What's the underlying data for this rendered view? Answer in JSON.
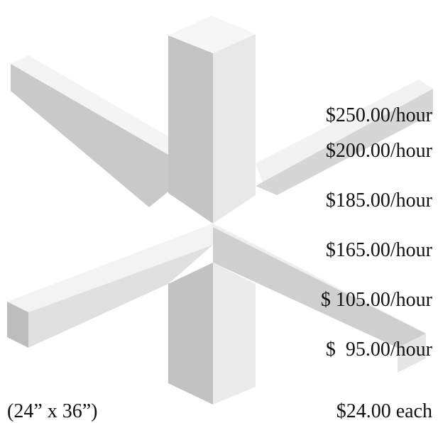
{
  "prices": [
    "$250.00/hour",
    "$200.00/hour",
    "$185.00/hour",
    "$165.00/hour",
    "$ 105.00/hour",
    "$  95.00/hour"
  ],
  "poster": {
    "size": "(24” x 36”)",
    "price": "$24.00 each"
  }
}
